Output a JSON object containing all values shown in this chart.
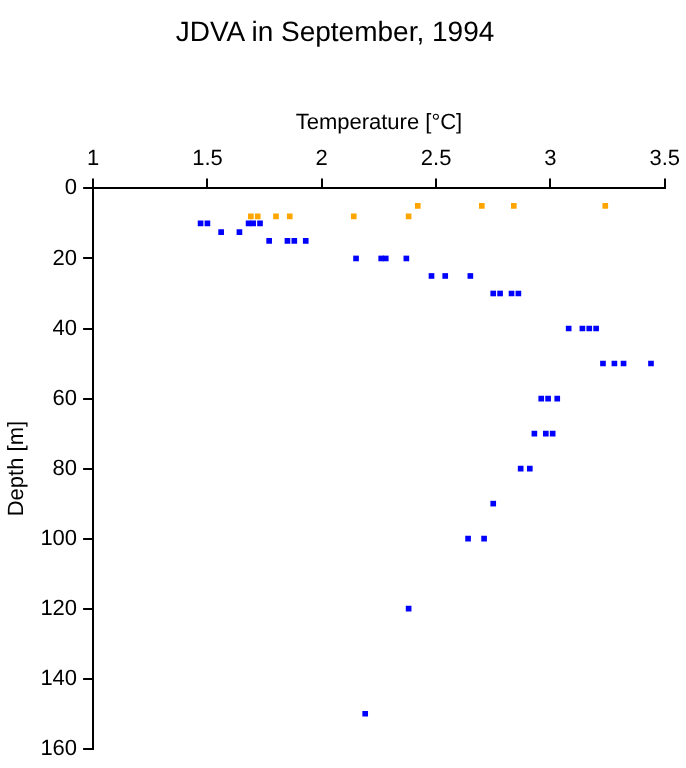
{
  "chart_data": {
    "type": "scatter",
    "title": "JDVA in September, 1994",
    "xlabel": "Temperature [°C]",
    "ylabel": "Depth [m]",
    "xlim": [
      1,
      3.5
    ],
    "xticks": [
      1,
      1.5,
      2,
      2.5,
      3,
      3.5
    ],
    "ylim": [
      160,
      0
    ],
    "yticks": [
      0,
      20,
      40,
      60,
      80,
      100,
      120,
      140,
      160
    ],
    "grid": false,
    "legend": false,
    "marker": "square",
    "series": [
      {
        "color": "#ffa500",
        "x": [
          1.69,
          1.72,
          1.8,
          1.86,
          2.14,
          2.38,
          2.42,
          2.7,
          2.84,
          3.24
        ],
        "values": [
          8,
          8,
          8,
          8,
          8,
          8,
          5,
          5,
          5,
          5
        ]
      },
      {
        "color": "#0000ff",
        "x": [
          1.47,
          1.5,
          1.68,
          1.7,
          1.73,
          1.56,
          1.64,
          1.77,
          1.85,
          1.88,
          1.93,
          2.15,
          2.26,
          2.28,
          2.37,
          2.48,
          2.54,
          2.65,
          2.75,
          2.78,
          2.83,
          2.86,
          3.08,
          3.14,
          3.17,
          3.2,
          3.23,
          3.28,
          3.32,
          3.44,
          2.96,
          2.99,
          3.03,
          2.93,
          2.98,
          3.01,
          2.87,
          2.91,
          2.75,
          2.64,
          2.71,
          2.38,
          2.19
        ],
        "values": [
          10,
          10,
          10,
          10,
          10,
          12.5,
          12.5,
          15,
          15,
          15,
          15,
          20,
          20,
          20,
          20,
          25,
          25,
          25,
          30,
          30,
          30,
          30,
          40,
          40,
          40,
          40,
          50,
          50,
          50,
          50,
          60,
          60,
          60,
          70,
          70,
          70,
          80,
          80,
          90,
          100,
          100,
          120,
          150
        ]
      }
    ]
  }
}
